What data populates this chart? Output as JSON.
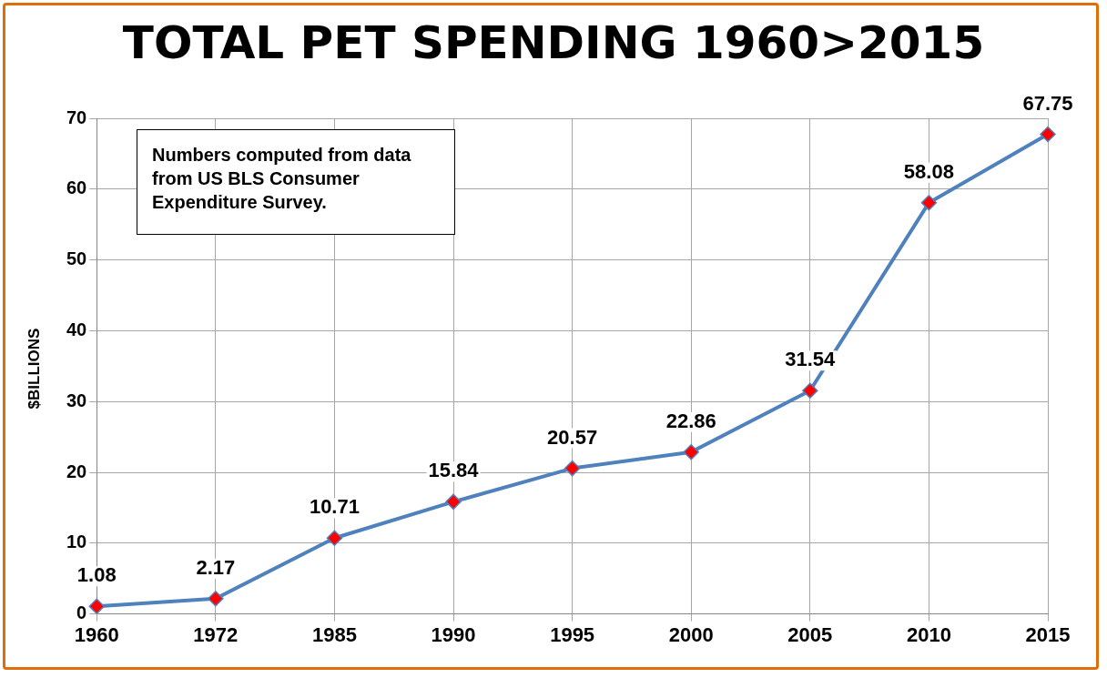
{
  "chart_data": {
    "type": "line",
    "title": "TOTAL PET SPENDING 1960>2015",
    "ylabel": "$BILLIONS",
    "categories": [
      "1960",
      "1972",
      "1985",
      "1990",
      "1995",
      "2000",
      "2005",
      "2010",
      "2015"
    ],
    "series": [
      {
        "color": "#4f81bd",
        "colors": [
          "#ff0000",
          "#ff0000",
          "#ff0000",
          "#ff0000",
          "#ff0000",
          "#ff0000",
          "#ff0000",
          "#ff0000",
          "#ff0000"
        ],
        "values": [
          1.08,
          2.17,
          10.71,
          15.84,
          20.57,
          22.86,
          31.54,
          58.08,
          67.75
        ]
      }
    ],
    "ylim": [
      0,
      70
    ],
    "yticks": [
      0,
      10,
      20,
      30,
      40,
      50,
      60,
      70
    ],
    "grid": true,
    "legend": false,
    "marker": "diamond",
    "line_style": "solid",
    "data_labels": true,
    "annotations": [
      "Numbers computed from data from US BLS Consumer Expenditure Survey."
    ]
  }
}
